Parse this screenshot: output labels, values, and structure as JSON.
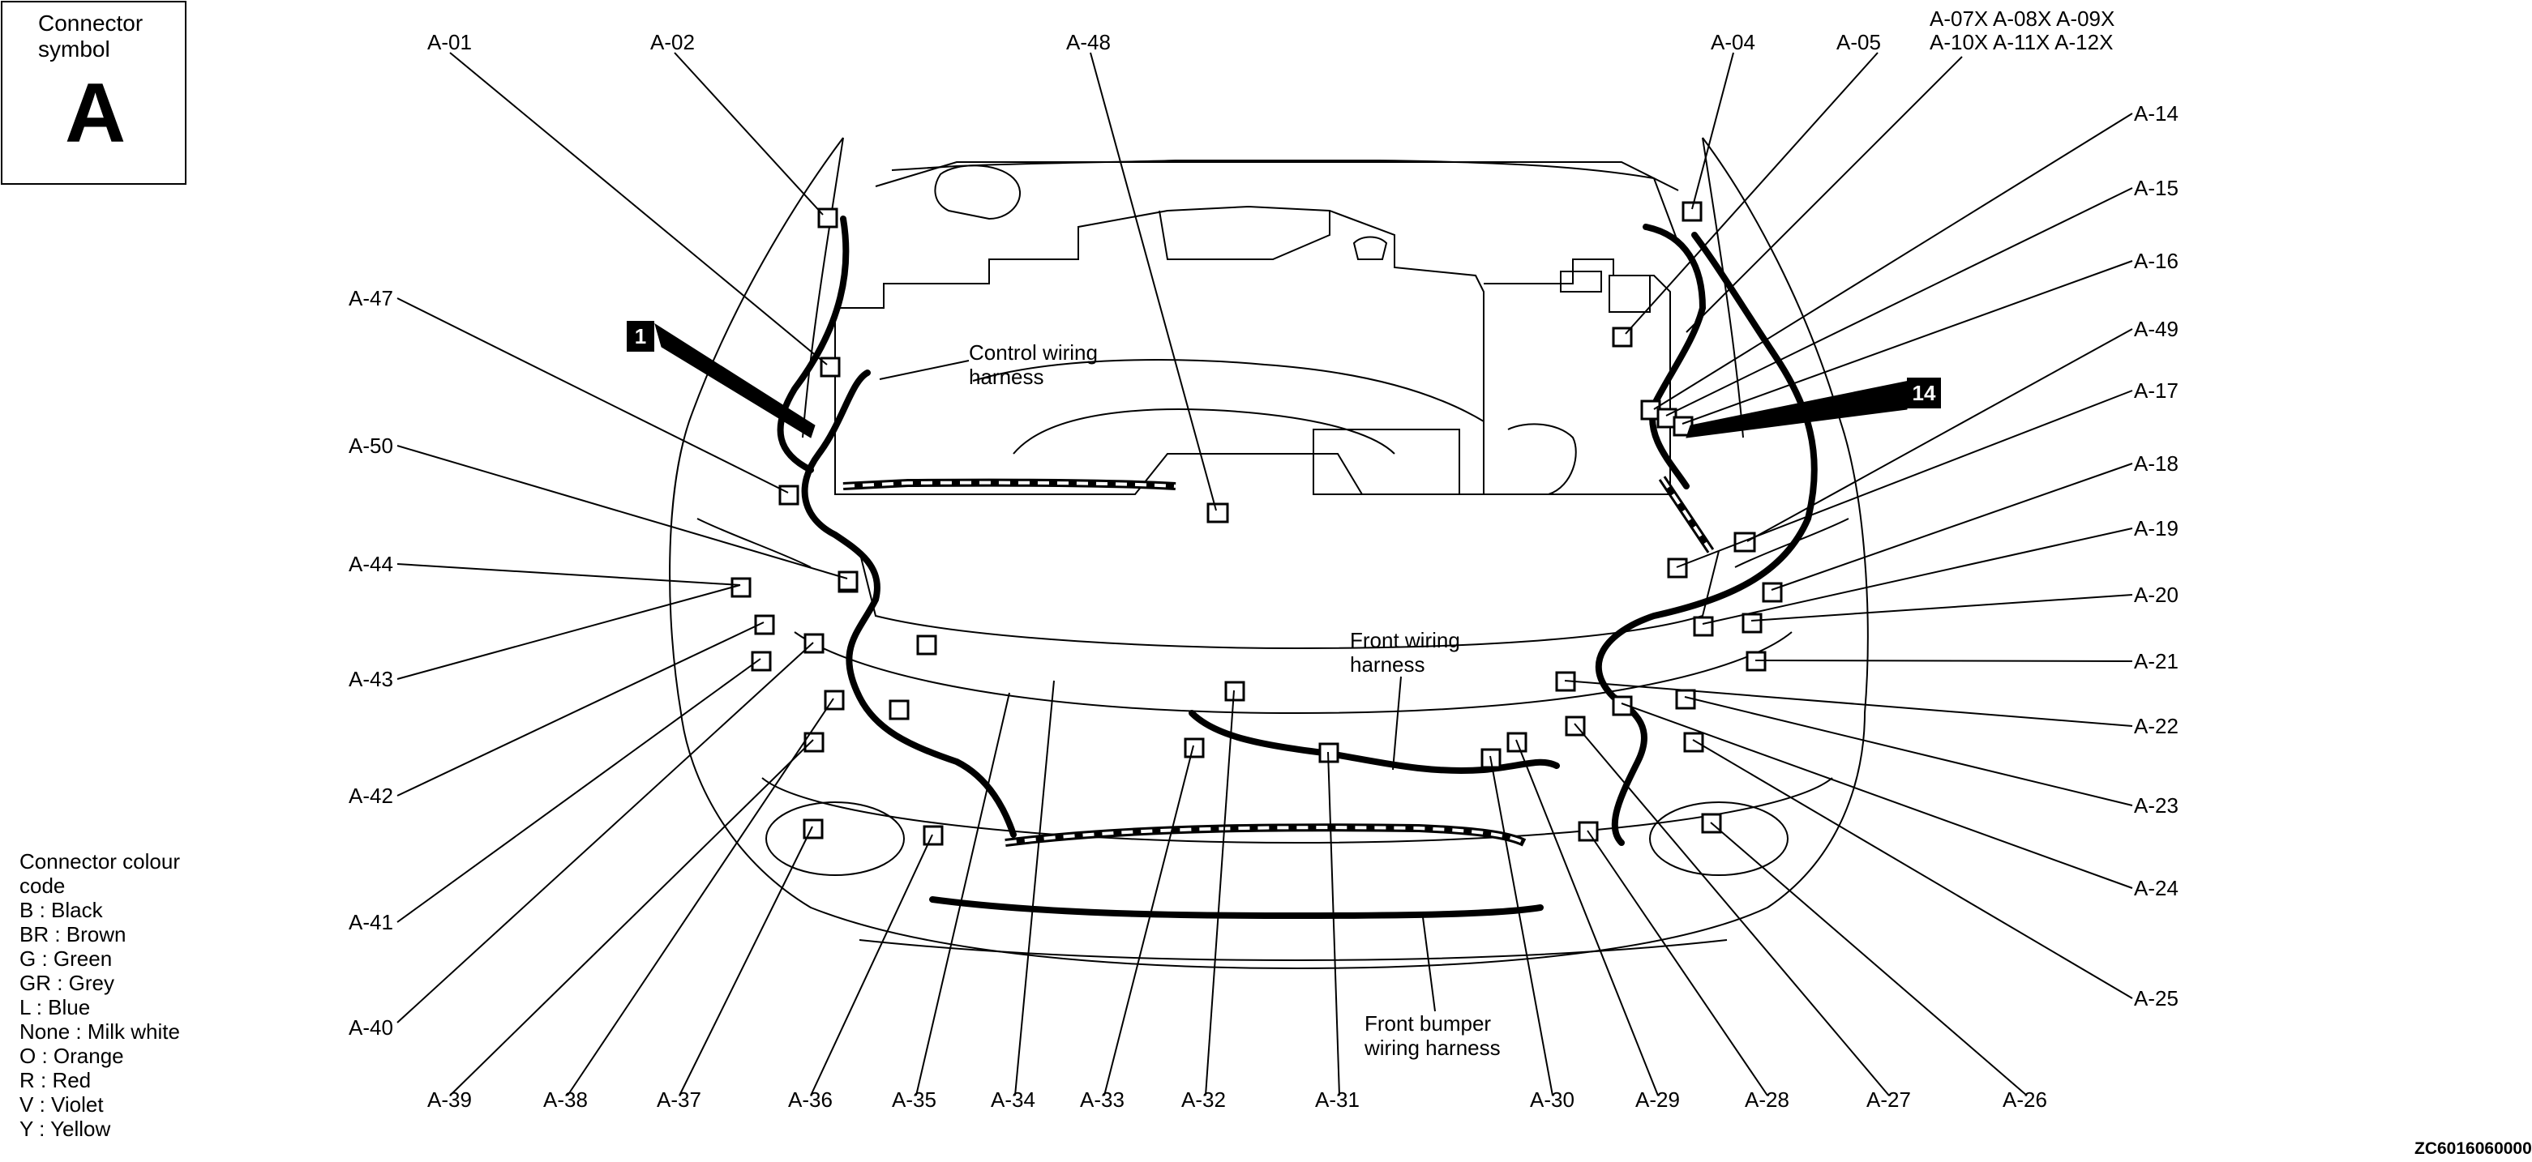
{
  "symbol": {
    "title": "Connector\nsymbol",
    "letter": "A"
  },
  "colour_legend": {
    "title": "Connector colour\ncode",
    "items": [
      "B : Black",
      "BR : Brown",
      "G : Green",
      "GR : Grey",
      "L : Blue",
      "None : Milk white",
      "O : Orange",
      "R : Red",
      "V : Violet",
      "Y : Yellow"
    ]
  },
  "harness_labels": {
    "control": "Control wiring\nharness",
    "front": "Front wiring\nharness",
    "bumper": "Front bumper\nwiring harness"
  },
  "callouts": {
    "c1": "1",
    "c14": "14"
  },
  "connectors": {
    "a01": "A-01",
    "a02": "A-02",
    "a48": "A-48",
    "a04": "A-04",
    "a05": "A-05",
    "a07_09": "A-07X A-08X A-09X",
    "a10_12": "A-10X A-11X A-12X",
    "a14": "A-14",
    "a15": "A-15",
    "a16": "A-16",
    "a49": "A-49",
    "a17": "A-17",
    "a18": "A-18",
    "a19": "A-19",
    "a20": "A-20",
    "a21": "A-21",
    "a22": "A-22",
    "a23": "A-23",
    "a24": "A-24",
    "a25": "A-25",
    "a47": "A-47",
    "a50": "A-50",
    "a44": "A-44",
    "a43": "A-43",
    "a42": "A-42",
    "a41": "A-41",
    "a40": "A-40",
    "a39": "A-39",
    "a38": "A-38",
    "a37": "A-37",
    "a36": "A-36",
    "a35": "A-35",
    "a34": "A-34",
    "a33": "A-33",
    "a32": "A-32",
    "a31": "A-31",
    "a30": "A-30",
    "a29": "A-29",
    "a28": "A-28",
    "a27": "A-27",
    "a26": "A-26"
  },
  "image_code": "ZC6016060000"
}
